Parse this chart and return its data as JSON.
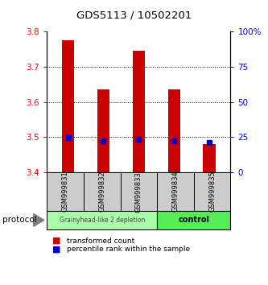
{
  "title": "GDS5113 / 10502201",
  "samples": [
    "GSM999831",
    "GSM999832",
    "GSM999833",
    "GSM999834",
    "GSM999835"
  ],
  "red_bar_tops": [
    3.775,
    3.635,
    3.745,
    3.635,
    3.48
  ],
  "red_bar_bottom": 3.4,
  "blue_marker_y": [
    3.498,
    3.49,
    3.495,
    3.49,
    3.485
  ],
  "ylim": [
    3.4,
    3.8
  ],
  "yticks_left": [
    3.4,
    3.5,
    3.6,
    3.7,
    3.8
  ],
  "yticks_right": [
    0,
    25,
    50,
    75,
    100
  ],
  "ytick_labels_right": [
    "0",
    "25",
    "50",
    "75",
    "100%"
  ],
  "group1_label": "Grainyhead-like 2 depletion",
  "group2_label": "control",
  "group1_color": "#aaffaa",
  "group2_color": "#55ee55",
  "sample_box_color": "#cccccc",
  "red_bar_color": "#cc0000",
  "blue_marker_color": "#0000cc",
  "legend_red_label": "transformed count",
  "legend_blue_label": "percentile rank within the sample",
  "protocol_label": "protocol",
  "bar_width": 0.35
}
